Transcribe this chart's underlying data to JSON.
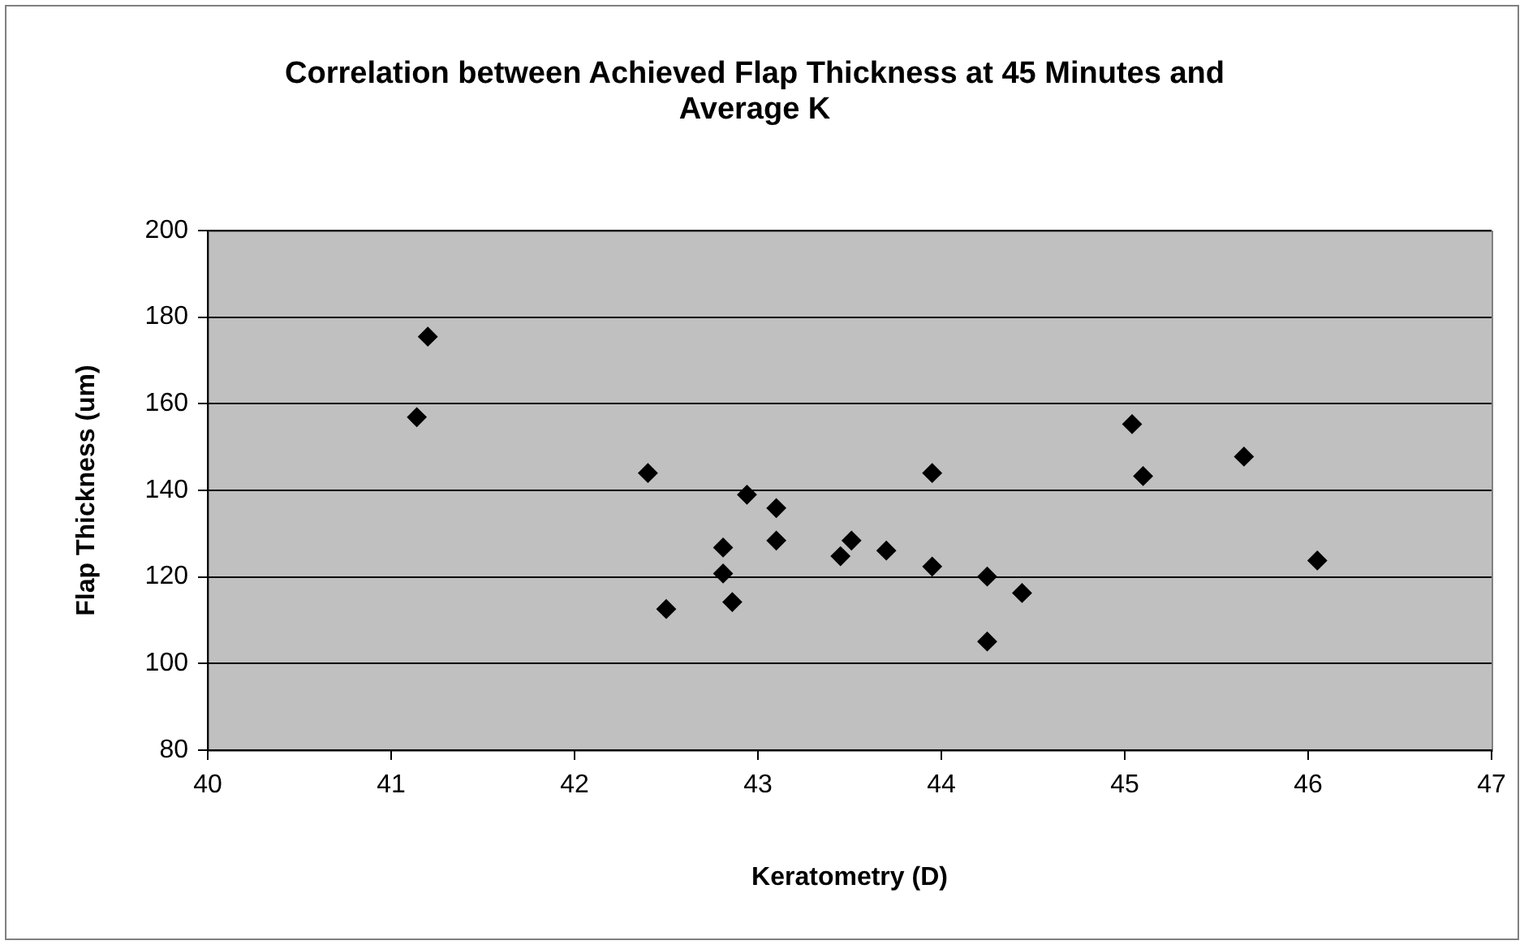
{
  "chart_data": {
    "type": "scatter",
    "title": "Correlation between Achieved Flap Thickness at 45 Minutes and Average K",
    "xlabel": "Keratometry (D)",
    "ylabel": "Flap Thickness (um)",
    "x": [
      41.2,
      41.14,
      42.4,
      42.5,
      42.81,
      42.81,
      42.86,
      42.94,
      43.1,
      43.1,
      43.45,
      43.51,
      43.7,
      43.95,
      43.95,
      44.25,
      44.25,
      44.44,
      45.04,
      45.1,
      45.65,
      46.05
    ],
    "values": [
      175.5,
      156.9,
      144,
      112.6,
      126.8,
      120.8,
      114.2,
      139,
      135.9,
      128.4,
      124.8,
      128.4,
      126.1,
      144,
      122.4,
      120.1,
      105.1,
      116.3,
      155.3,
      143.3,
      147.8,
      123.8
    ],
    "color": "#000000",
    "marker": "diamond",
    "grid": "y",
    "xlim": [
      40,
      47
    ],
    "xticks": [
      40,
      41,
      42,
      43,
      44,
      45,
      46,
      47
    ],
    "ylim": [
      80,
      200
    ],
    "yticks": [
      80,
      100,
      120,
      140,
      160,
      180,
      200
    ]
  }
}
